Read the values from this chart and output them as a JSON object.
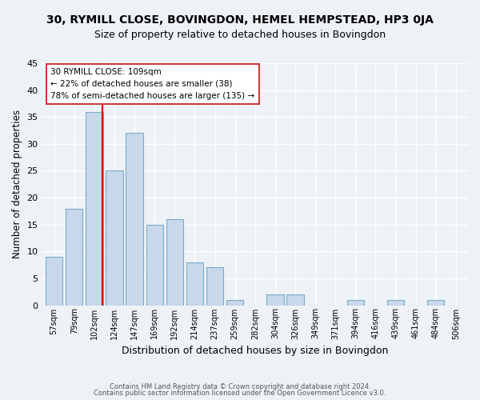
{
  "title": "30, RYMILL CLOSE, BOVINGDON, HEMEL HEMPSTEAD, HP3 0JA",
  "subtitle": "Size of property relative to detached houses in Bovingdon",
  "xlabel": "Distribution of detached houses by size in Bovingdon",
  "ylabel": "Number of detached properties",
  "categories": [
    "57sqm",
    "79sqm",
    "102sqm",
    "124sqm",
    "147sqm",
    "169sqm",
    "192sqm",
    "214sqm",
    "237sqm",
    "259sqm",
    "282sqm",
    "304sqm",
    "326sqm",
    "349sqm",
    "371sqm",
    "394sqm",
    "416sqm",
    "439sqm",
    "461sqm",
    "484sqm",
    "506sqm"
  ],
  "bar_values": [
    9,
    18,
    36,
    25,
    32,
    15,
    16,
    8,
    7,
    1,
    0,
    2,
    2,
    0,
    0,
    1,
    0,
    1,
    0,
    1,
    0
  ],
  "bar_color": "#c8d8ea",
  "bar_edgecolor": "#7aaac8",
  "vline_x_index": 2,
  "vline_color": "#cc0000",
  "ylim": [
    0,
    45
  ],
  "annotation_text": "30 RYMILL CLOSE: 109sqm\n← 22% of detached houses are smaller (38)\n78% of semi-detached houses are larger (135) →",
  "footer_line1": "Contains HM Land Registry data © Crown copyright and database right 2024.",
  "footer_line2": "Contains public sector information licensed under the Open Government Licence v3.0.",
  "bg_color": "#eef2f7",
  "title_fontsize": 10,
  "subtitle_fontsize": 9,
  "xlabel_fontsize": 9,
  "ylabel_fontsize": 8.5
}
